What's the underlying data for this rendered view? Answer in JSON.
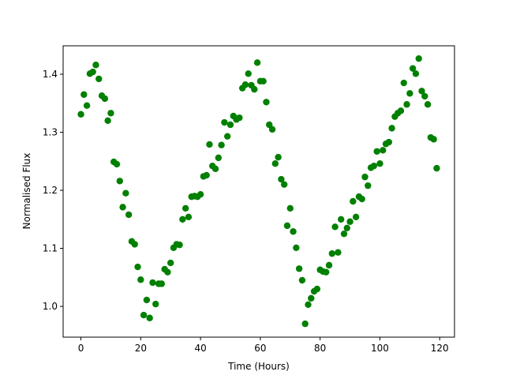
{
  "chart_data": {
    "type": "scatter",
    "xlabel": "Time (Hours)",
    "ylabel": "Normalised Flux",
    "color": "#008000",
    "grid": false,
    "xlim": [
      -5.95,
      124.95
    ],
    "ylim": [
      0.947,
      1.449
    ],
    "xticks": [
      0,
      20,
      40,
      60,
      80,
      100,
      120
    ],
    "yticks": [
      {
        "value": 1,
        "label": "1.0"
      },
      1.1,
      1.2,
      1.3,
      1.4
    ],
    "x": [
      0,
      1,
      2,
      3,
      4,
      5,
      6,
      7,
      8,
      9,
      10,
      11,
      12,
      13,
      14,
      15,
      16,
      17,
      18,
      19,
      20,
      21,
      22,
      23,
      24,
      25,
      26,
      27,
      28,
      29,
      30,
      31,
      32,
      33,
      34,
      35,
      36,
      37,
      38,
      39,
      40,
      41,
      42,
      43,
      44,
      45,
      46,
      47,
      48,
      49,
      50,
      51,
      52,
      53,
      54,
      55,
      56,
      57,
      58,
      59,
      60,
      61,
      62,
      63,
      64,
      65,
      66,
      67,
      68,
      69,
      70,
      71,
      72,
      73,
      74,
      75,
      76,
      77,
      78,
      79,
      80,
      81,
      82,
      83,
      84,
      85,
      86,
      87,
      88,
      89,
      90,
      91,
      92,
      93,
      94,
      95,
      96,
      97,
      98,
      99,
      100,
      101,
      102,
      103,
      104,
      105,
      106,
      107,
      108,
      109,
      110,
      111,
      112,
      113,
      114,
      115,
      116,
      117,
      118,
      119
    ],
    "values": [
      1.331,
      1.365,
      1.346,
      1.401,
      1.404,
      1.416,
      1.392,
      1.363,
      1.358,
      1.32,
      1.333,
      1.249,
      1.245,
      1.216,
      1.171,
      1.195,
      1.158,
      1.112,
      1.107,
      1.068,
      1.046,
      0.985,
      1.011,
      0.98,
      1.041,
      1.004,
      1.039,
      1.039,
      1.064,
      1.059,
      1.075,
      1.101,
      1.107,
      1.106,
      1.15,
      1.169,
      1.154,
      1.189,
      1.19,
      1.189,
      1.193,
      1.224,
      1.226,
      1.279,
      1.242,
      1.237,
      1.256,
      1.278,
      1.317,
      1.293,
      1.313,
      1.328,
      1.322,
      1.325,
      1.376,
      1.382,
      1.401,
      1.381,
      1.374,
      1.42,
      1.388,
      1.388,
      1.352,
      1.313,
      1.305,
      1.246,
      1.257,
      1.219,
      1.21,
      1.139,
      1.169,
      1.129,
      1.101,
      1.065,
      1.045,
      0.97,
      1.003,
      1.014,
      1.026,
      1.03,
      1.063,
      1.06,
      1.059,
      1.071,
      1.091,
      1.137,
      1.093,
      1.15,
      1.125,
      1.135,
      1.146,
      1.181,
      1.154,
      1.189,
      1.185,
      1.223,
      1.208,
      1.239,
      1.242,
      1.267,
      1.246,
      1.269,
      1.28,
      1.283,
      1.307,
      1.327,
      1.333,
      1.337,
      1.385,
      1.348,
      1.367,
      1.41,
      1.401,
      1.427,
      1.371,
      1.362,
      1.348,
      1.291,
      1.288,
      1.238
    ]
  }
}
